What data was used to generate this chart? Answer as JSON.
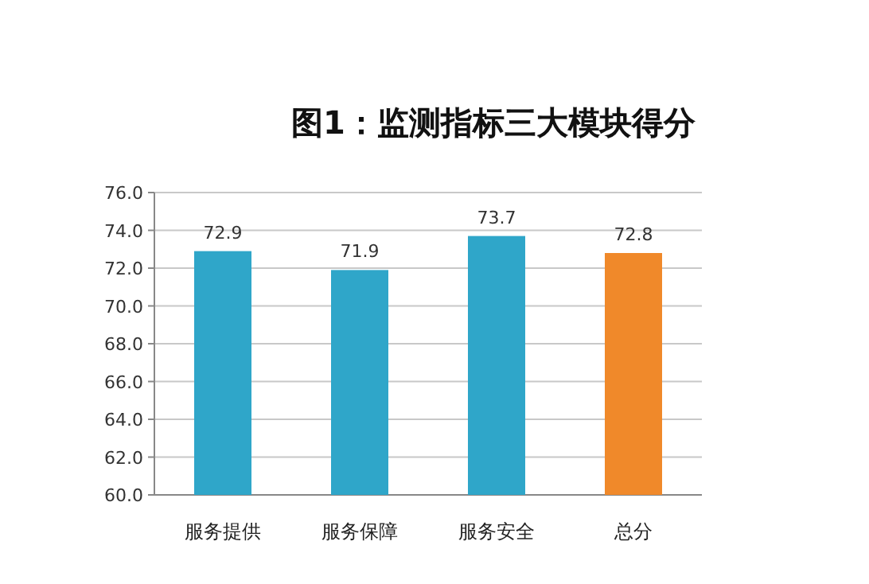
{
  "chart_data": {
    "type": "bar",
    "title": "图1：监测指标三大模块得分",
    "categories": [
      "服务提供",
      "服务保障",
      "服务安全",
      "总分"
    ],
    "values": [
      72.9,
      71.9,
      73.7,
      72.8
    ],
    "colors": [
      "#2fa6c9",
      "#2fa6c9",
      "#2fa6c9",
      "#f0892a"
    ],
    "ylim": [
      60,
      76
    ],
    "yticks": [
      {
        "value": 60,
        "label": "60.0"
      },
      {
        "value": 62,
        "label": "62.0"
      },
      {
        "value": 64,
        "label": "64.0"
      },
      {
        "value": 66,
        "label": "66.0"
      },
      {
        "value": 68,
        "label": "68.0"
      },
      {
        "value": 70,
        "label": "70.0"
      },
      {
        "value": 72,
        "label": "72.0"
      },
      {
        "value": 74,
        "label": "74.0"
      },
      {
        "value": 76,
        "label": "76.0"
      }
    ],
    "grid": "y",
    "data_labels": true
  }
}
